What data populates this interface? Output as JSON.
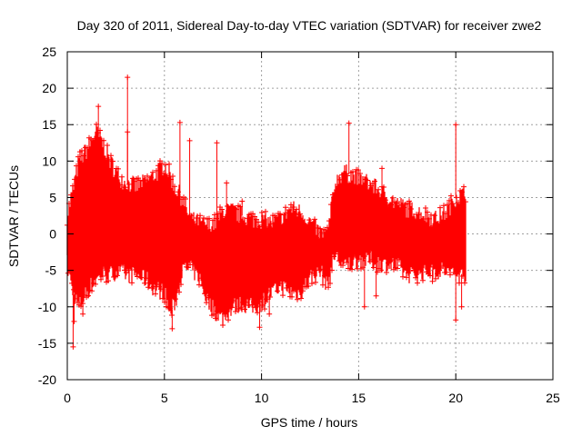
{
  "chart_data": {
    "type": "scatter",
    "title": "Day 320 of 2011, Sidereal Day-to-day VTEC variation (SDTVAR) for receiver zwe2",
    "xlabel": "GPS time / hours",
    "ylabel": "SDTVAR / TECUs",
    "xlim": [
      0,
      25
    ],
    "ylim": [
      -20,
      25
    ],
    "xticks": [
      0,
      5,
      10,
      15,
      20,
      25
    ],
    "yticks": [
      -20,
      -15,
      -10,
      -5,
      0,
      5,
      10,
      15,
      20,
      25
    ],
    "grid": true,
    "marker": "plus",
    "series_color": "#ff0000",
    "series": [
      {
        "name": "SDTVAR",
        "envelope_hours": [
          0.0,
          0.3,
          0.6,
          1.0,
          1.5,
          1.8,
          2.2,
          2.6,
          3.0,
          3.5,
          4.0,
          4.5,
          5.0,
          5.3,
          5.6,
          5.9,
          6.3,
          6.8,
          7.2,
          7.6,
          8.0,
          8.5,
          9.0,
          9.5,
          10.0,
          10.5,
          11.0,
          11.5,
          12.0,
          12.5,
          13.0,
          13.4,
          13.8,
          14.2,
          14.6,
          15.0,
          15.5,
          16.0,
          16.5,
          17.0,
          17.5,
          18.0,
          18.5,
          19.0,
          19.5,
          20.0,
          20.5
        ],
        "envelope_upper": [
          2.5,
          6.0,
          10.0,
          11.5,
          14.0,
          12.5,
          10.0,
          8.0,
          7.0,
          6.5,
          7.0,
          8.0,
          9.5,
          8.0,
          6.0,
          5.0,
          2.0,
          1.5,
          1.0,
          1.5,
          3.0,
          3.0,
          2.5,
          2.0,
          2.0,
          1.5,
          2.0,
          3.5,
          3.0,
          1.5,
          0.0,
          0.0,
          7.0,
          8.5,
          8.0,
          7.5,
          7.0,
          6.0,
          5.0,
          4.0,
          3.5,
          3.0,
          2.5,
          2.0,
          3.0,
          5.0,
          5.5
        ],
        "envelope_lower": [
          -4.0,
          -8.0,
          -10.0,
          -8.0,
          -6.0,
          -5.5,
          -5.5,
          -5.0,
          -5.5,
          -5.5,
          -6.0,
          -7.5,
          -8.0,
          -11.0,
          -9.0,
          -5.0,
          -4.5,
          -6.0,
          -9.0,
          -10.5,
          -11.5,
          -10.0,
          -9.5,
          -10.0,
          -9.5,
          -8.0,
          -7.0,
          -8.0,
          -8.0,
          -6.0,
          -5.0,
          -7.0,
          -2.5,
          -4.5,
          -4.0,
          -3.5,
          -3.5,
          -4.0,
          -4.0,
          -4.5,
          -5.5,
          -5.5,
          -5.0,
          -5.0,
          -5.0,
          -5.5,
          -5.5
        ],
        "outliers": [
          {
            "x": 0.3,
            "y": -15.5
          },
          {
            "x": 0.35,
            "y": -12.0
          },
          {
            "x": 0.8,
            "y": -11.0
          },
          {
            "x": 1.6,
            "y": 17.5
          },
          {
            "x": 3.1,
            "y": 21.5
          },
          {
            "x": 3.1,
            "y": 14.0
          },
          {
            "x": 5.4,
            "y": -13.0
          },
          {
            "x": 5.8,
            "y": 15.3
          },
          {
            "x": 6.3,
            "y": 12.8
          },
          {
            "x": 7.7,
            "y": 12.5
          },
          {
            "x": 8.2,
            "y": 7.0
          },
          {
            "x": 9.0,
            "y": 4.5
          },
          {
            "x": 9.9,
            "y": -12.8
          },
          {
            "x": 10.4,
            "y": -11.0
          },
          {
            "x": 14.5,
            "y": 15.2
          },
          {
            "x": 15.3,
            "y": -10.0
          },
          {
            "x": 15.9,
            "y": -8.5
          },
          {
            "x": 16.2,
            "y": 9.0
          },
          {
            "x": 20.0,
            "y": 15.0
          },
          {
            "x": 20.0,
            "y": -11.8
          },
          {
            "x": 20.3,
            "y": -10.0
          },
          {
            "x": 18.8,
            "y": -6.5
          }
        ]
      }
    ]
  }
}
